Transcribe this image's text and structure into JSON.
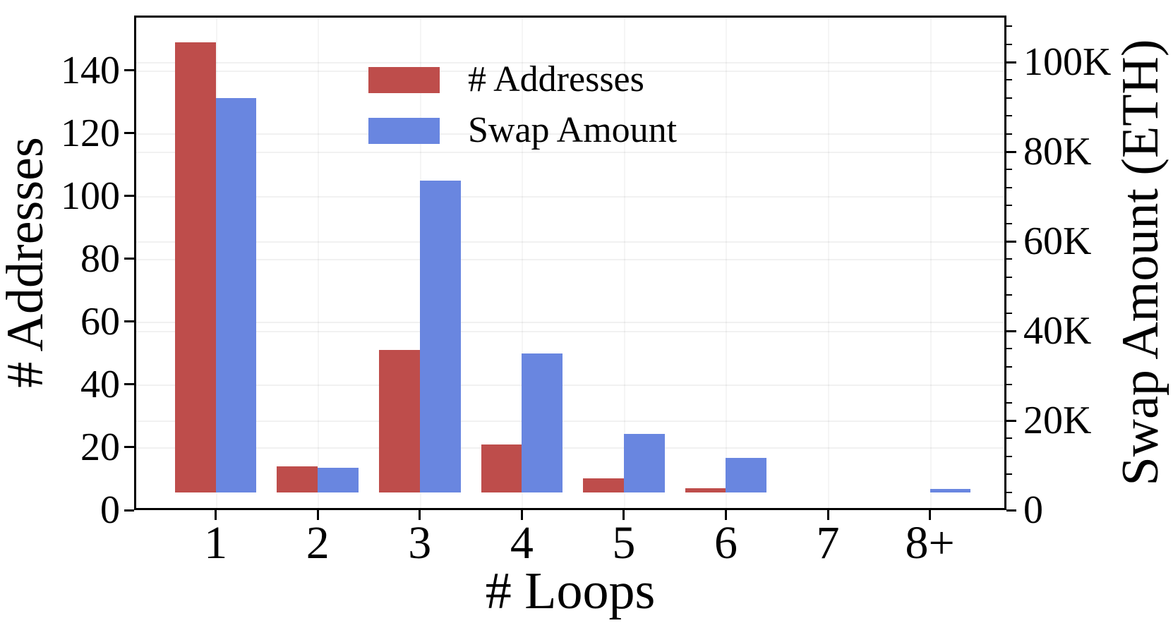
{
  "figure": {
    "background": "#ffffff"
  },
  "chart_data": {
    "type": "bar",
    "title": "",
    "categories": [
      "1",
      "2",
      "3",
      "4",
      "5",
      "6",
      "7",
      "8+"
    ],
    "series": [
      {
        "name": "# Addresses",
        "axis": "left",
        "color": "#be4d4b",
        "values": [
          149,
          14,
          51,
          21,
          10,
          7,
          0,
          2
        ]
      },
      {
        "name": "Swap Amount",
        "axis": "right",
        "color": "#6986e0",
        "values": [
          92000,
          9500,
          73500,
          35000,
          17000,
          11700,
          0,
          4700
        ]
      }
    ],
    "xlabel": "# Loops",
    "ylabel_left": "# Addresses",
    "ylabel_right": "Swap Amount (ETH)",
    "ylim_left": [
      0,
      157.5
    ],
    "ylim_right": [
      0,
      110400
    ],
    "yticks_left": [
      0,
      20,
      40,
      60,
      80,
      100,
      120,
      140
    ],
    "ytick_labels_left": [
      "0",
      "20",
      "40",
      "60",
      "80",
      "100",
      "120",
      "140"
    ],
    "yticks_right": [
      0,
      20000,
      40000,
      60000,
      80000,
      100000
    ],
    "ytick_labels_right": [
      "0",
      "20K",
      "40K",
      "60K",
      "80K",
      "100K"
    ],
    "minor_tick_step_right": 4000,
    "grid": true,
    "legend_position": "upper left inside plot",
    "axis_color": "#000000",
    "grid_color": "#ededed"
  }
}
